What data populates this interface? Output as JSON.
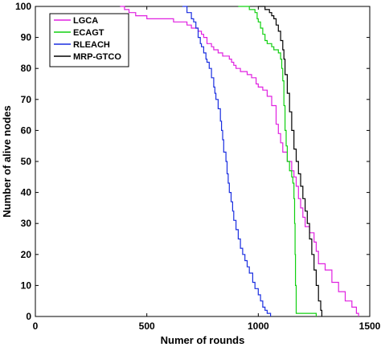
{
  "chart_data": {
    "type": "line",
    "xlabel": "Numer of rounds",
    "ylabel": "Number of alive nodes",
    "xlim": [
      0,
      1500
    ],
    "ylim": [
      0,
      100
    ],
    "xticks": [
      0,
      500,
      1000,
      1500
    ],
    "yticks": [
      0,
      10,
      20,
      30,
      40,
      50,
      60,
      70,
      80,
      90,
      100
    ],
    "grid": false,
    "legend_position": "top-left",
    "series": [
      {
        "name": "LGCA",
        "color": "#e020e0",
        "points": [
          [
            380,
            100
          ],
          [
            400,
            99
          ],
          [
            420,
            98
          ],
          [
            450,
            97
          ],
          [
            500,
            96
          ],
          [
            580,
            96
          ],
          [
            620,
            95
          ],
          [
            650,
            95
          ],
          [
            680,
            94
          ],
          [
            700,
            93
          ],
          [
            730,
            92
          ],
          [
            745,
            91
          ],
          [
            755,
            90
          ],
          [
            770,
            88
          ],
          [
            790,
            87
          ],
          [
            800,
            86
          ],
          [
            820,
            85
          ],
          [
            840,
            84
          ],
          [
            870,
            83
          ],
          [
            880,
            82
          ],
          [
            890,
            81
          ],
          [
            900,
            80
          ],
          [
            920,
            79
          ],
          [
            950,
            78
          ],
          [
            970,
            77
          ],
          [
            990,
            75
          ],
          [
            1000,
            74
          ],
          [
            1020,
            73
          ],
          [
            1040,
            71
          ],
          [
            1060,
            68
          ],
          [
            1080,
            62
          ],
          [
            1090,
            59
          ],
          [
            1100,
            56
          ],
          [
            1110,
            53
          ],
          [
            1130,
            50
          ],
          [
            1150,
            47
          ],
          [
            1160,
            45
          ],
          [
            1170,
            42
          ],
          [
            1180,
            38
          ],
          [
            1190,
            35
          ],
          [
            1200,
            32
          ],
          [
            1210,
            29
          ],
          [
            1230,
            27
          ],
          [
            1250,
            24
          ],
          [
            1260,
            21
          ],
          [
            1270,
            17
          ],
          [
            1300,
            15
          ],
          [
            1330,
            11
          ],
          [
            1360,
            8
          ],
          [
            1390,
            5
          ],
          [
            1420,
            3
          ],
          [
            1440,
            1
          ],
          [
            1450,
            0
          ]
        ]
      },
      {
        "name": "ECAGT",
        "color": "#10d010",
        "points": [
          [
            910,
            100
          ],
          [
            960,
            99
          ],
          [
            985,
            98
          ],
          [
            995,
            96
          ],
          [
            1000,
            95
          ],
          [
            1010,
            93
          ],
          [
            1020,
            91
          ],
          [
            1030,
            89
          ],
          [
            1040,
            88
          ],
          [
            1060,
            87
          ],
          [
            1070,
            86
          ],
          [
            1090,
            85
          ],
          [
            1100,
            83
          ],
          [
            1105,
            80
          ],
          [
            1110,
            76
          ],
          [
            1115,
            68
          ],
          [
            1120,
            60
          ],
          [
            1125,
            55
          ],
          [
            1130,
            50
          ],
          [
            1140,
            47
          ],
          [
            1150,
            45
          ],
          [
            1155,
            43
          ],
          [
            1160,
            38
          ],
          [
            1163,
            30
          ],
          [
            1165,
            20
          ],
          [
            1167,
            10
          ],
          [
            1170,
            1
          ],
          [
            1250,
            1
          ],
          [
            1260,
            0
          ]
        ]
      },
      {
        "name": "RLEACH",
        "color": "#1a2ee0",
        "points": [
          [
            660,
            100
          ],
          [
            680,
            98
          ],
          [
            700,
            96
          ],
          [
            710,
            95
          ],
          [
            720,
            93
          ],
          [
            730,
            90
          ],
          [
            740,
            88
          ],
          [
            745,
            87
          ],
          [
            755,
            85
          ],
          [
            765,
            83
          ],
          [
            770,
            82
          ],
          [
            780,
            80
          ],
          [
            790,
            77
          ],
          [
            800,
            74
          ],
          [
            805,
            72
          ],
          [
            810,
            70
          ],
          [
            820,
            67
          ],
          [
            830,
            63
          ],
          [
            835,
            60
          ],
          [
            840,
            57
          ],
          [
            845,
            53
          ],
          [
            855,
            50
          ],
          [
            860,
            46
          ],
          [
            865,
            43
          ],
          [
            870,
            40
          ],
          [
            878,
            37
          ],
          [
            885,
            34
          ],
          [
            890,
            31
          ],
          [
            900,
            28
          ],
          [
            910,
            25
          ],
          [
            920,
            22
          ],
          [
            930,
            20
          ],
          [
            940,
            18
          ],
          [
            950,
            16
          ],
          [
            960,
            14
          ],
          [
            975,
            11
          ],
          [
            985,
            9
          ],
          [
            1000,
            7
          ],
          [
            1010,
            5
          ],
          [
            1020,
            3
          ],
          [
            1030,
            2
          ],
          [
            1040,
            1
          ],
          [
            1055,
            0
          ]
        ]
      },
      {
        "name": "MRP-GTCO",
        "color": "#000000",
        "points": [
          [
            1000,
            100
          ],
          [
            1030,
            99
          ],
          [
            1050,
            98
          ],
          [
            1060,
            97
          ],
          [
            1070,
            96
          ],
          [
            1080,
            94
          ],
          [
            1090,
            92
          ],
          [
            1100,
            89
          ],
          [
            1110,
            86
          ],
          [
            1115,
            83
          ],
          [
            1120,
            78
          ],
          [
            1130,
            72
          ],
          [
            1140,
            66
          ],
          [
            1150,
            60
          ],
          [
            1160,
            54
          ],
          [
            1170,
            50
          ],
          [
            1180,
            46
          ],
          [
            1190,
            42
          ],
          [
            1200,
            38
          ],
          [
            1210,
            34
          ],
          [
            1220,
            30
          ],
          [
            1230,
            25
          ],
          [
            1240,
            20
          ],
          [
            1250,
            15
          ],
          [
            1260,
            10
          ],
          [
            1270,
            5
          ],
          [
            1280,
            2
          ],
          [
            1285,
            0
          ]
        ]
      }
    ]
  }
}
